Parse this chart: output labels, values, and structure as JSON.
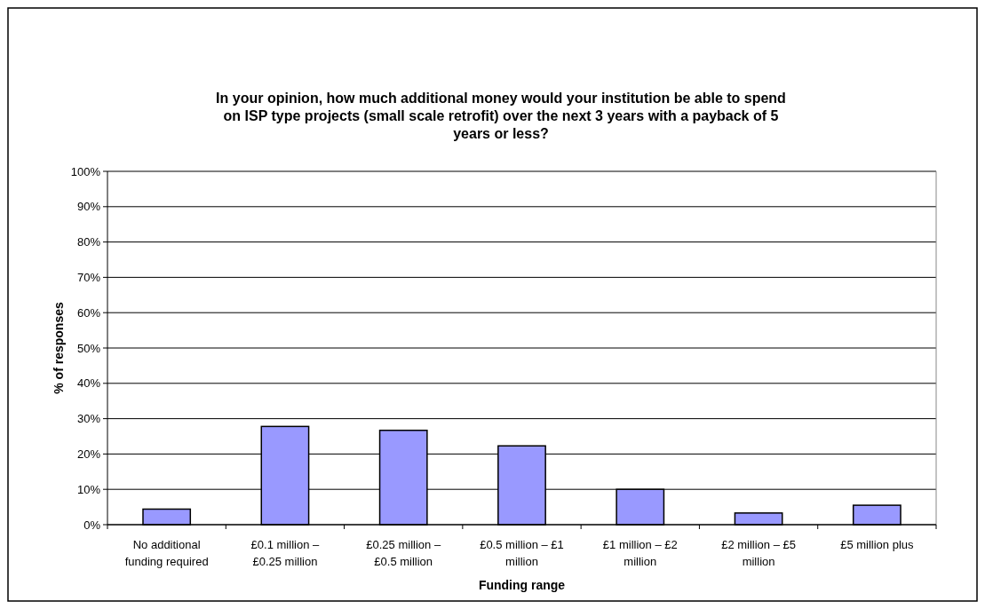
{
  "chart_data": {
    "type": "bar",
    "title": "In your opinion, how much additional money would your institution be able to spend on ISP type projects (small scale retrofit) over the next 3 years with a payback of 5 years or less?",
    "xlabel": "Funding range",
    "ylabel": "% of responses",
    "categories": [
      "No additional funding required",
      "£0.1 million – £0.25 million",
      "£0.25 million – £0.5 million",
      "£0.5 million – £1 million",
      "£1 million – £2 million",
      "£2 million – £5 million",
      "£5 million plus"
    ],
    "values": [
      4.4,
      27.8,
      26.7,
      22.3,
      10.0,
      3.3,
      5.5
    ],
    "color": "#9999ff",
    "ylim": [
      0,
      100
    ],
    "yticks": [
      {
        "value": 0,
        "label": "0%"
      },
      {
        "value": 10,
        "label": "10%"
      },
      {
        "value": 20,
        "label": "20%"
      },
      {
        "value": 30,
        "label": "30%"
      },
      {
        "value": 40,
        "label": "40%"
      },
      {
        "value": 50,
        "label": "50%"
      },
      {
        "value": 60,
        "label": "60%"
      },
      {
        "value": 70,
        "label": "70%"
      },
      {
        "value": 80,
        "label": "80%"
      },
      {
        "value": 90,
        "label": "90%"
      },
      {
        "value": 100,
        "label": "100%"
      }
    ],
    "grid": "y"
  }
}
